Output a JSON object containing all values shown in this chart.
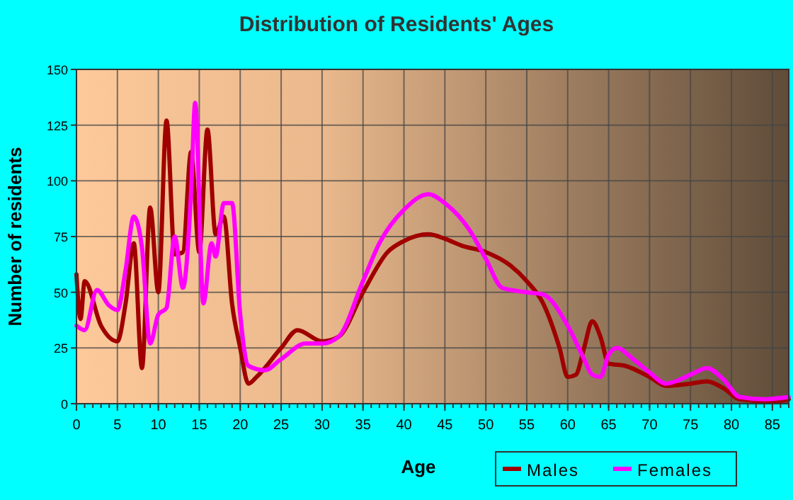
{
  "chart_data": {
    "type": "line",
    "title": "Distribution of Residents' Ages",
    "xlabel": "Age",
    "ylabel": "Number of residents",
    "xlim": [
      0,
      87
    ],
    "xticks": [
      0,
      5,
      10,
      15,
      20,
      25,
      30,
      35,
      40,
      45,
      50,
      55,
      60,
      65,
      70,
      75,
      80,
      85
    ],
    "ylim": [
      0,
      150
    ],
    "yticks": [
      0,
      25,
      50,
      75,
      100,
      125,
      150
    ],
    "grid": true,
    "legend": "bottom right",
    "line_style": "solid",
    "series": [
      {
        "name": "Males",
        "color": "#a00000",
        "x": [
          0,
          0.5,
          1,
          3,
          5,
          6,
          7,
          8,
          9,
          10,
          11,
          12,
          13,
          14,
          15,
          16,
          17,
          18,
          19,
          20,
          21,
          22,
          25,
          27,
          30,
          32,
          35,
          38,
          40,
          43,
          45,
          47,
          50,
          53,
          55,
          57,
          59,
          60,
          61,
          62,
          63,
          64,
          65,
          67,
          70,
          72,
          75,
          77,
          79,
          81,
          85,
          87
        ],
        "values": [
          58,
          38,
          55,
          35,
          28,
          45,
          72,
          16,
          88,
          50,
          127,
          67,
          68,
          113,
          68,
          123,
          76,
          84,
          45,
          25,
          9,
          12,
          25,
          33,
          28,
          30,
          50,
          68,
          73,
          76,
          74,
          71,
          68,
          62,
          55,
          45,
          25,
          12,
          13,
          25,
          37,
          30,
          18,
          17,
          12,
          8,
          9,
          10,
          7,
          2,
          1,
          2
        ]
      },
      {
        "name": "Females",
        "color": "#ff00ff",
        "x": [
          0,
          1,
          2.5,
          4,
          5,
          6,
          7,
          8,
          9,
          10,
          11,
          12,
          13,
          14,
          14.5,
          15.5,
          16.5,
          17,
          18,
          19,
          20,
          21,
          23,
          25,
          28,
          30,
          32,
          35,
          37,
          40,
          43,
          45,
          48,
          50,
          52,
          55,
          57,
          60,
          62,
          63,
          64,
          65,
          66,
          68,
          70,
          72,
          75,
          77,
          79,
          81,
          84,
          87
        ],
        "values": [
          35,
          33,
          51,
          44,
          42,
          60,
          84,
          70,
          27,
          40,
          43,
          75,
          52,
          95,
          135,
          45,
          72,
          66,
          90,
          90,
          40,
          17,
          15,
          20,
          27,
          27,
          30,
          55,
          72,
          87,
          94,
          90,
          78,
          65,
          52,
          50,
          49,
          35,
          20,
          13,
          12,
          22,
          25,
          20,
          14,
          9,
          13,
          16,
          11,
          3,
          2,
          3
        ]
      }
    ]
  }
}
